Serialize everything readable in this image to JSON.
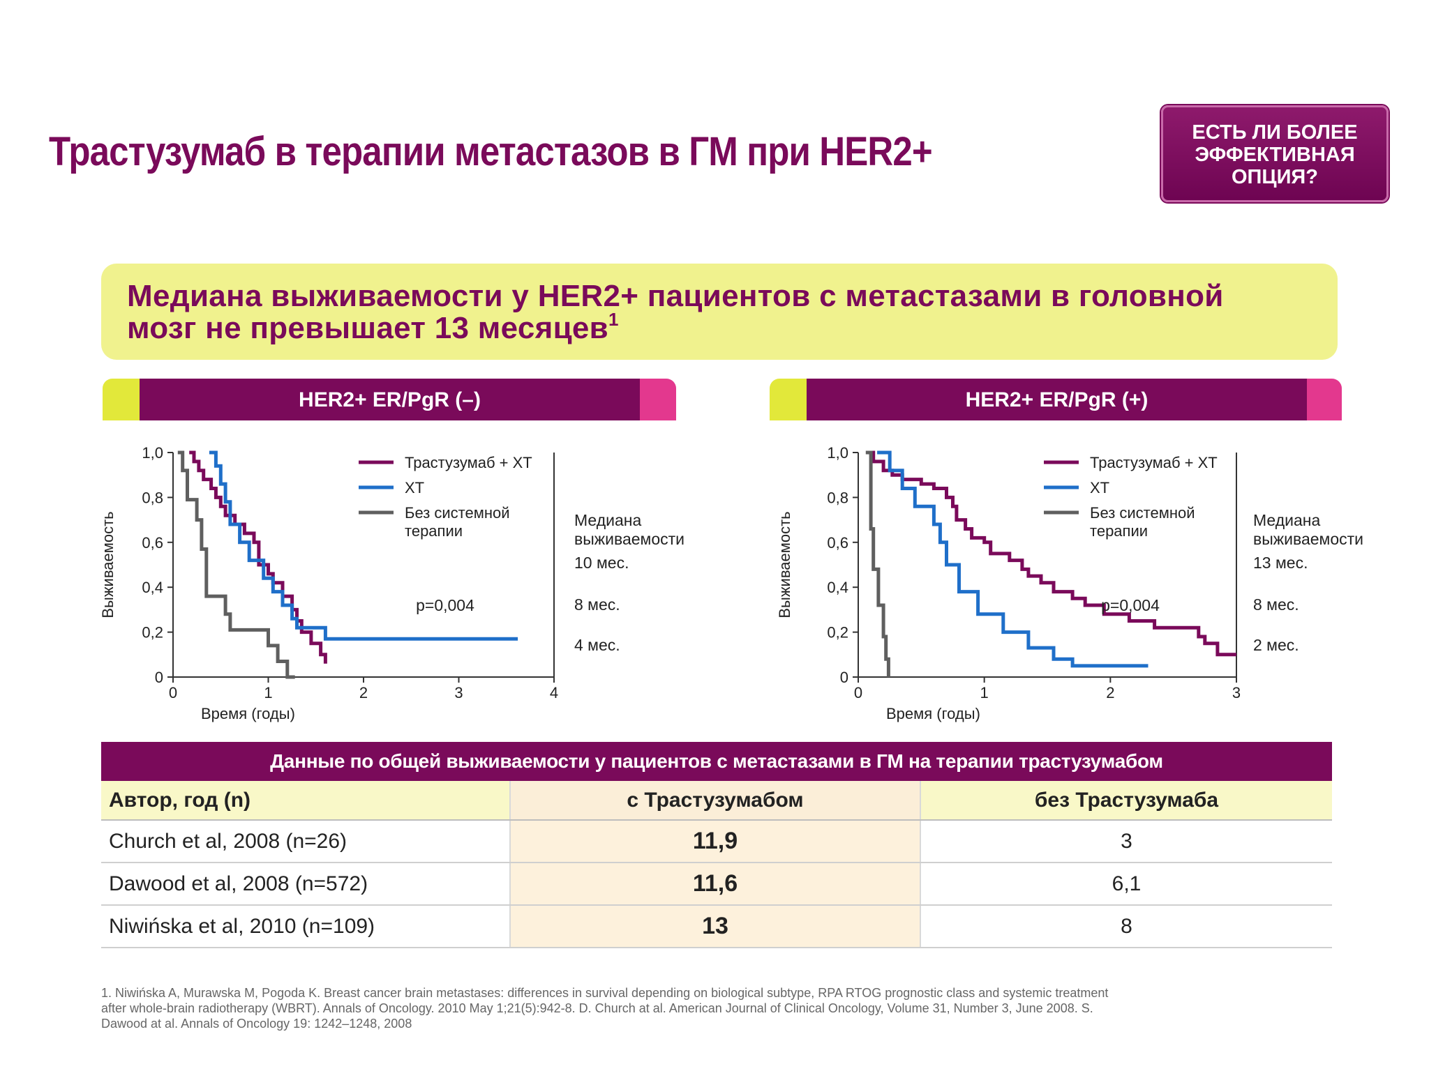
{
  "title": "Трастузумаб в терапии метастазов в ГМ при HER2+",
  "badge": [
    "ЕСТЬ ЛИ БОЛЕЕ",
    "ЭФФЕКТИВНАЯ",
    "ОПЦИЯ?"
  ],
  "banner": {
    "line1": "Медиана выживаемости у HER2+ пациентов с метастазами в головной",
    "line2": "мозг не превышает 13 месяцев",
    "sup": "1"
  },
  "colors": {
    "trastuzumab": "#7a0a5a",
    "xt": "#1f6fc9",
    "none": "#5f5f5f"
  },
  "legend": {
    "trastuzumab": "Трастузумаб + ХТ",
    "xt": "ХТ",
    "none_line1": "Без системной",
    "none_line2": "терапии"
  },
  "chart_data": [
    {
      "type": "line",
      "title": "HER2+ ER/PgR (–)",
      "xlabel": "Время (годы)",
      "ylabel": "Выживаемость",
      "xlim": [
        0,
        4
      ],
      "ylim": [
        0,
        1.0
      ],
      "xticks": [
        "0",
        "1",
        "2",
        "3",
        "4"
      ],
      "yticks": [
        "0",
        "0,2",
        "0,4",
        "0,6",
        "0,8",
        "1,0"
      ],
      "annotation": "p=0,004",
      "median_title": [
        "Медиана",
        "выживаемости"
      ],
      "medians": [
        "10 мес.",
        "8 мес.",
        "4 мес."
      ],
      "series": [
        {
          "name": "Трастузумаб + ХТ",
          "x": [
            0.17,
            0.22,
            0.27,
            0.32,
            0.4,
            0.45,
            0.5,
            0.55,
            0.65,
            0.75,
            0.85,
            0.9,
            1.0,
            1.05,
            1.15,
            1.25,
            1.3,
            1.35,
            1.45,
            1.55,
            1.6
          ],
          "y": [
            1.0,
            0.96,
            0.92,
            0.88,
            0.84,
            0.8,
            0.76,
            0.72,
            0.68,
            0.64,
            0.6,
            0.5,
            0.46,
            0.42,
            0.36,
            0.3,
            0.25,
            0.2,
            0.15,
            0.1,
            0.06
          ]
        },
        {
          "name": "ХТ",
          "x": [
            0.38,
            0.45,
            0.5,
            0.55,
            0.6,
            0.7,
            0.8,
            0.95,
            1.05,
            1.15,
            1.25,
            1.3,
            1.55,
            1.6,
            3.62
          ],
          "y": [
            1.0,
            0.94,
            0.86,
            0.78,
            0.68,
            0.6,
            0.52,
            0.44,
            0.38,
            0.32,
            0.26,
            0.22,
            0.22,
            0.17,
            0.17
          ]
        },
        {
          "name": "Без системной терапии",
          "x": [
            0.05,
            0.1,
            0.15,
            0.25,
            0.3,
            0.35,
            0.55,
            0.6,
            1.0,
            1.1,
            1.2,
            1.27,
            1.28
          ],
          "y": [
            1.0,
            0.92,
            0.79,
            0.7,
            0.57,
            0.36,
            0.28,
            0.21,
            0.14,
            0.07,
            0.0,
            0.0,
            0.0
          ]
        }
      ]
    },
    {
      "type": "line",
      "title": "HER2+ ER/PgR (+)",
      "xlabel": "Время (годы)",
      "ylabel": "Выживаемость",
      "xlim": [
        0,
        3
      ],
      "ylim": [
        0,
        1.0
      ],
      "xticks": [
        "0",
        "1",
        "2",
        "3"
      ],
      "yticks": [
        "0",
        "0,2",
        "0,4",
        "0,6",
        "0,8",
        "1,0"
      ],
      "annotation": "p=0,004",
      "median_title": [
        "Медиана",
        "выживаемости"
      ],
      "medians": [
        "13 мес.",
        "8 мес.",
        "2 мес."
      ],
      "series": [
        {
          "name": "Трастузумаб + ХТ",
          "x": [
            0.07,
            0.12,
            0.2,
            0.27,
            0.35,
            0.5,
            0.6,
            0.7,
            0.75,
            0.78,
            0.85,
            0.9,
            1.0,
            1.05,
            1.2,
            1.3,
            1.35,
            1.45,
            1.55,
            1.7,
            1.8,
            1.95,
            2.15,
            2.35,
            2.55,
            2.7,
            2.75,
            2.85,
            3.0
          ],
          "y": [
            1.0,
            0.96,
            0.92,
            0.9,
            0.88,
            0.86,
            0.84,
            0.8,
            0.76,
            0.7,
            0.66,
            0.62,
            0.6,
            0.55,
            0.52,
            0.48,
            0.45,
            0.42,
            0.38,
            0.35,
            0.32,
            0.28,
            0.25,
            0.22,
            0.22,
            0.18,
            0.15,
            0.1,
            0.1
          ]
        },
        {
          "name": "ХТ",
          "x": [
            0.15,
            0.25,
            0.35,
            0.45,
            0.6,
            0.65,
            0.7,
            0.8,
            0.95,
            1.15,
            1.35,
            1.55,
            1.7,
            2.3
          ],
          "y": [
            1.0,
            0.92,
            0.84,
            0.76,
            0.68,
            0.6,
            0.5,
            0.38,
            0.28,
            0.2,
            0.13,
            0.08,
            0.05,
            0.05
          ]
        },
        {
          "name": "Без системной терапии",
          "x": [
            0.06,
            0.1,
            0.12,
            0.16,
            0.2,
            0.22,
            0.24,
            0.24
          ],
          "y": [
            1.0,
            0.66,
            0.48,
            0.32,
            0.18,
            0.08,
            0.0,
            0.0
          ]
        }
      ]
    }
  ],
  "table": {
    "caption": "Данные по общей выживаемости у пациентов с метастазами в ГМ на терапии трастузумабом",
    "headers": [
      "Автор, год (n)",
      "с Трастузумабом",
      "без Трастузумаба"
    ],
    "rows": [
      [
        "Church et al, 2008 (n=26)",
        "11,9",
        "3"
      ],
      [
        "Dawood et al, 2008 (n=572)",
        "11,6",
        "6,1"
      ],
      [
        "Niwińska et al, 2010 (n=109)",
        "13",
        "8"
      ]
    ]
  },
  "references": "1. Niwińska A, Murawska M, Pogoda K. Breast cancer brain metastases: differences in survival depending on biological subtype, RPA RTOG prognostic class and systemic treatment after whole-brain radiotherapy (WBRT). Annals of Oncology. 2010 May 1;21(5):942-8. D. Church at al. American Journal of Clinical Oncology, Volume 31, Number 3, June 2008. S. Dawood at al. Annals of Oncology 19: 1242–1248, 2008"
}
